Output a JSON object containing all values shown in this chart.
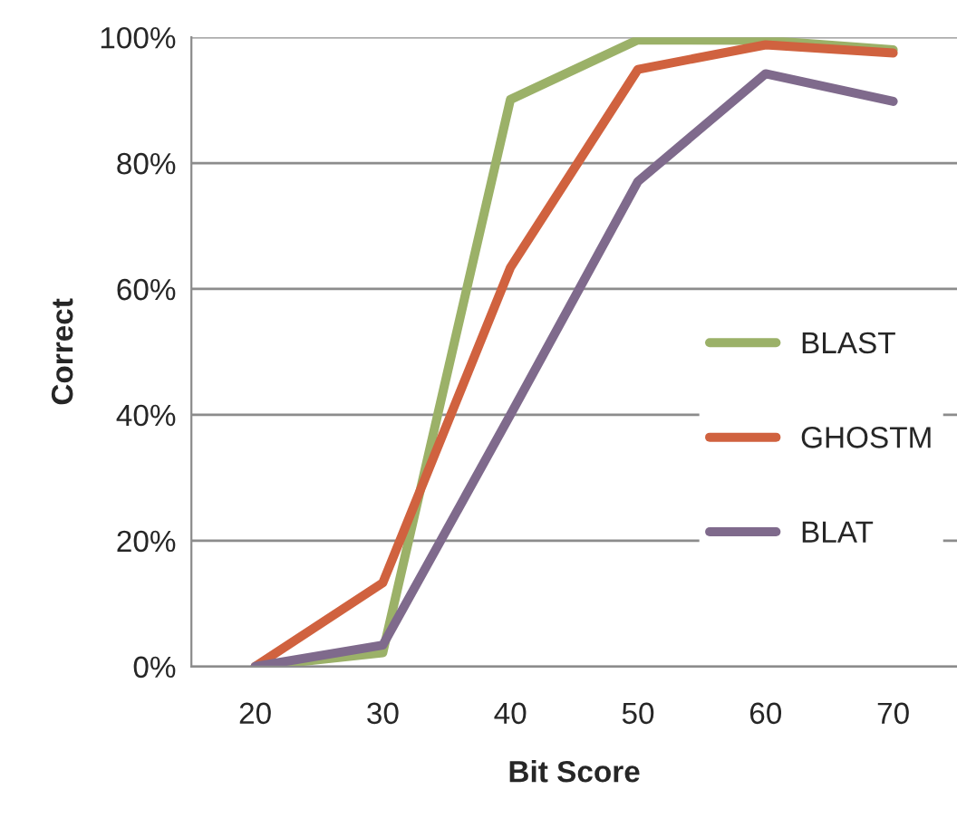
{
  "chart_data": {
    "type": "line",
    "xlabel": "Bit Score",
    "ylabel": "Correct",
    "categories": [
      "20",
      "30",
      "40",
      "50",
      "60",
      "70"
    ],
    "series": [
      {
        "name": "BLAST",
        "color": "#9bb168",
        "values": [
          0,
          2.2,
          90.1,
          99.6,
          99.5,
          98
        ]
      },
      {
        "name": "GHOSTM",
        "color": "#d0623f",
        "values": [
          0,
          13.3,
          63.4,
          94.9,
          98.8,
          97.5
        ]
      },
      {
        "name": "BLAT",
        "color": "#7f6a8c",
        "values": [
          0,
          3.4,
          40,
          77.1,
          94.2,
          89.8
        ]
      }
    ],
    "ylim": [
      0,
      100
    ],
    "yticks": [
      {
        "value": 0,
        "label": "0%"
      },
      {
        "value": 20,
        "label": "20%"
      },
      {
        "value": 40,
        "label": "40%"
      },
      {
        "value": 60,
        "label": "60%"
      },
      {
        "value": 80,
        "label": "80%"
      },
      {
        "value": 100,
        "label": "100%"
      }
    ],
    "grid": "y",
    "legend": "right",
    "marker": "none",
    "line_style": "solid"
  }
}
